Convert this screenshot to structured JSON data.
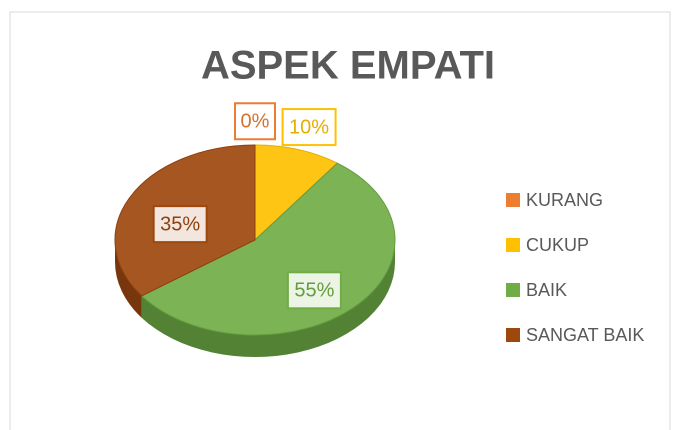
{
  "chart_data": {
    "type": "pie",
    "title": "ASPEK EMPATI",
    "categories": [
      "KURANG",
      "CUKUP",
      "BAIK",
      "SANGAT BAIK"
    ],
    "values": [
      0,
      10,
      55,
      35
    ],
    "value_labels": [
      "0%",
      "10%",
      "55%",
      "35%"
    ],
    "colors": [
      "#ED7D31",
      "#FFC000",
      "#70AD47",
      "#9E480E"
    ],
    "legend": "right"
  }
}
